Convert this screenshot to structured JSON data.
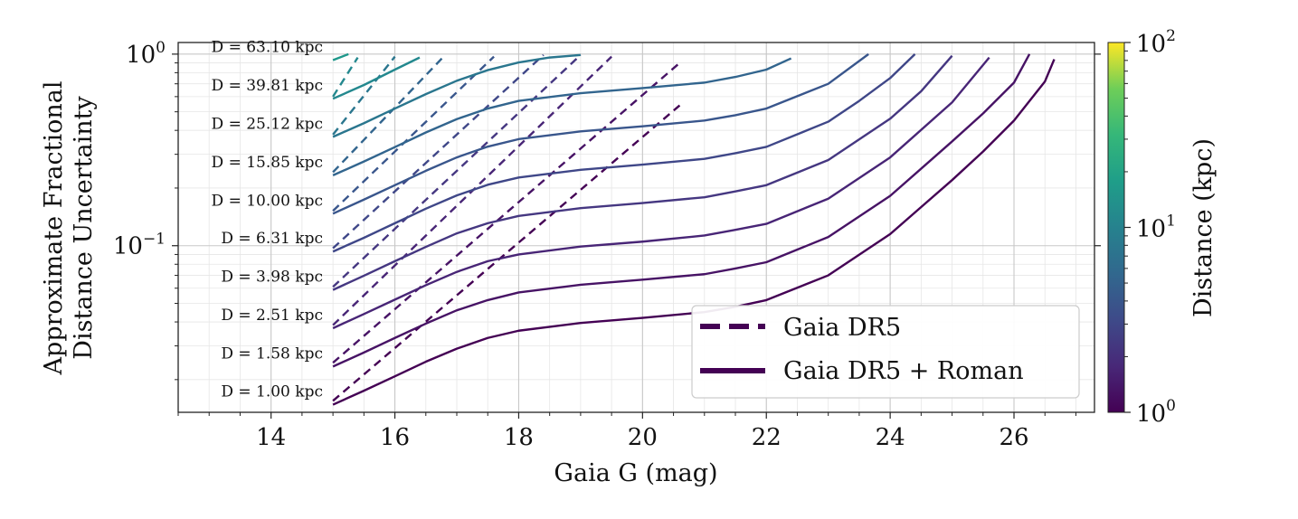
{
  "chart_data": {
    "type": "line",
    "xlabel": "Gaia G (mag)",
    "ylabel_line1": "Approximate Fractional",
    "ylabel_line2": "Distance Uncertainty",
    "xlim": [
      12.5,
      27.3
    ],
    "ylim": [
      0.0135,
      1.15
    ],
    "yscale": "log",
    "x_ticks": [
      14,
      16,
      18,
      20,
      22,
      24,
      26
    ],
    "x_tick_labels": [
      "14",
      "16",
      "18",
      "20",
      "22",
      "24",
      "26"
    ],
    "y_ticks": [
      {
        "value": 1.0,
        "base": "10",
        "exp": "0"
      },
      {
        "value": 0.1,
        "base": "10",
        "exp": "−1"
      }
    ],
    "colorbar": {
      "label": "Distance (kpc)",
      "scale": "log",
      "range": [
        1,
        100
      ],
      "colormap": "viridis",
      "ticks": [
        {
          "value": 100,
          "base": "10",
          "exp": "2"
        },
        {
          "value": 10,
          "base": "10",
          "exp": "1"
        },
        {
          "value": 1,
          "base": "10",
          "exp": "0"
        }
      ]
    },
    "legend": {
      "position": "lower-right",
      "entries": [
        {
          "label": "Gaia DR5",
          "style": "dashed"
        },
        {
          "label": "Gaia DR5 + Roman",
          "style": "solid"
        }
      ]
    },
    "series": [
      {
        "name": "D = 1.00 kpc",
        "distance_kpc": 1.0,
        "color": "#440154",
        "dashed": {
          "x": [
            15.0,
            20.6
          ],
          "y": [
            0.0155,
            0.54
          ]
        },
        "solid": {
          "x": [
            15.0,
            15.5,
            16.0,
            16.5,
            17.0,
            17.5,
            18.0,
            19.0,
            20.0,
            21.0,
            21.5,
            22.0,
            23.0,
            24.0,
            25.0,
            25.5,
            26.0,
            26.5,
            26.65
          ],
          "y": [
            0.0148,
            0.0175,
            0.0208,
            0.0248,
            0.029,
            0.033,
            0.036,
            0.0395,
            0.042,
            0.045,
            0.048,
            0.052,
            0.07,
            0.115,
            0.22,
            0.31,
            0.45,
            0.72,
            0.94
          ]
        }
      },
      {
        "name": "D = 1.58 kpc",
        "distance_kpc": 1.58,
        "color": "#471365",
        "dashed": {
          "x": [
            15.0,
            20.6
          ],
          "y": [
            0.0245,
            0.9
          ]
        },
        "solid": {
          "x": [
            15.0,
            15.5,
            16.0,
            16.5,
            17.0,
            17.5,
            18.0,
            19.0,
            20.0,
            21.0,
            21.5,
            22.0,
            23.0,
            24.0,
            25.0,
            25.5,
            26.0,
            26.25
          ],
          "y": [
            0.0234,
            0.0277,
            0.033,
            0.0392,
            0.046,
            0.052,
            0.057,
            0.0625,
            0.0665,
            0.071,
            0.076,
            0.082,
            0.111,
            0.182,
            0.35,
            0.49,
            0.71,
            1.0
          ]
        }
      },
      {
        "name": "D = 2.51 kpc",
        "distance_kpc": 2.51,
        "color": "#482576",
        "dashed": {
          "x": [
            15.0,
            19.5
          ],
          "y": [
            0.0385,
            0.97
          ]
        },
        "solid": {
          "x": [
            15.0,
            15.5,
            16.0,
            16.5,
            17.0,
            17.5,
            18.0,
            19.0,
            20.0,
            21.0,
            21.5,
            22.0,
            23.0,
            24.0,
            25.0,
            25.6
          ],
          "y": [
            0.0371,
            0.044,
            0.0523,
            0.0622,
            0.073,
            0.083,
            0.09,
            0.099,
            0.105,
            0.113,
            0.121,
            0.13,
            0.176,
            0.289,
            0.56,
            0.96
          ]
        }
      },
      {
        "name": "D = 3.98 kpc",
        "distance_kpc": 3.98,
        "color": "#453781",
        "dashed": {
          "x": [
            15.0,
            19.0
          ],
          "y": [
            0.061,
            0.99
          ]
        },
        "solid": {
          "x": [
            15.0,
            15.5,
            16.0,
            16.5,
            17.0,
            17.5,
            18.0,
            19.0,
            20.0,
            21.0,
            21.5,
            22.0,
            23.0,
            24.0,
            24.5,
            25.0
          ],
          "y": [
            0.0588,
            0.0697,
            0.083,
            0.0986,
            0.116,
            0.131,
            0.143,
            0.157,
            0.167,
            0.179,
            0.192,
            0.207,
            0.28,
            0.46,
            0.64,
            0.98
          ]
        }
      },
      {
        "name": "D = 6.31 kpc",
        "distance_kpc": 6.31,
        "color": "#3f4788",
        "dashed": {
          "x": [
            15.0,
            18.4
          ],
          "y": [
            0.097,
            0.99
          ]
        },
        "solid": {
          "x": [
            15.0,
            15.5,
            16.0,
            16.5,
            17.0,
            17.5,
            18.0,
            19.0,
            20.0,
            21.0,
            21.5,
            22.0,
            23.0,
            23.5,
            24.0,
            24.4
          ],
          "y": [
            0.0932,
            0.11,
            0.131,
            0.156,
            0.183,
            0.208,
            0.227,
            0.249,
            0.265,
            0.284,
            0.304,
            0.328,
            0.444,
            0.57,
            0.75,
            1.0
          ]
        }
      },
      {
        "name": "D = 10.00 kpc",
        "distance_kpc": 10.0,
        "color": "#39568c",
        "dashed": {
          "x": [
            15.0,
            17.6
          ],
          "y": [
            0.152,
            0.97
          ]
        },
        "solid": {
          "x": [
            15.0,
            15.5,
            16.0,
            16.5,
            17.0,
            17.5,
            18.0,
            19.0,
            20.0,
            21.0,
            21.5,
            22.0,
            23.0,
            23.65
          ],
          "y": [
            0.147,
            0.174,
            0.207,
            0.246,
            0.289,
            0.329,
            0.36,
            0.395,
            0.42,
            0.45,
            0.48,
            0.52,
            0.7,
            1.0
          ]
        }
      },
      {
        "name": "D = 15.85 kpc",
        "distance_kpc": 15.85,
        "color": "#32658e",
        "dashed": {
          "x": [
            15.0,
            16.8
          ],
          "y": [
            0.242,
            0.98
          ]
        },
        "solid": {
          "x": [
            15.0,
            15.5,
            16.0,
            16.5,
            17.0,
            17.5,
            18.0,
            19.0,
            20.0,
            21.0,
            21.5,
            22.0,
            22.4
          ],
          "y": [
            0.233,
            0.275,
            0.327,
            0.39,
            0.458,
            0.52,
            0.57,
            0.625,
            0.665,
            0.71,
            0.76,
            0.83,
            0.95
          ]
        }
      },
      {
        "name": "D = 25.12 kpc",
        "distance_kpc": 25.12,
        "color": "#2a768e",
        "dashed": {
          "x": [
            15.0,
            16.0
          ],
          "y": [
            0.38,
            0.97
          ]
        },
        "solid": {
          "x": [
            15.0,
            15.5,
            16.0,
            16.5,
            17.0,
            17.5,
            18.0,
            18.5,
            19.0
          ],
          "y": [
            0.37,
            0.436,
            0.52,
            0.618,
            0.726,
            0.825,
            0.905,
            0.96,
            0.99
          ]
        }
      },
      {
        "name": "D = 39.81 kpc",
        "distance_kpc": 39.81,
        "color": "#23888e",
        "dashed": {
          "x": [
            15.0,
            15.4
          ],
          "y": [
            0.6,
            0.96
          ]
        },
        "solid": {
          "x": [
            15.0,
            15.5,
            16.0,
            16.4
          ],
          "y": [
            0.585,
            0.69,
            0.83,
            0.96
          ]
        }
      },
      {
        "name": "D = 63.10 kpc",
        "distance_kpc": 63.1,
        "color": "#1f988b",
        "dashed": {
          "x": [],
          "y": []
        },
        "solid": {
          "x": [
            15.0,
            15.25
          ],
          "y": [
            0.93,
            1.0
          ]
        }
      }
    ]
  }
}
